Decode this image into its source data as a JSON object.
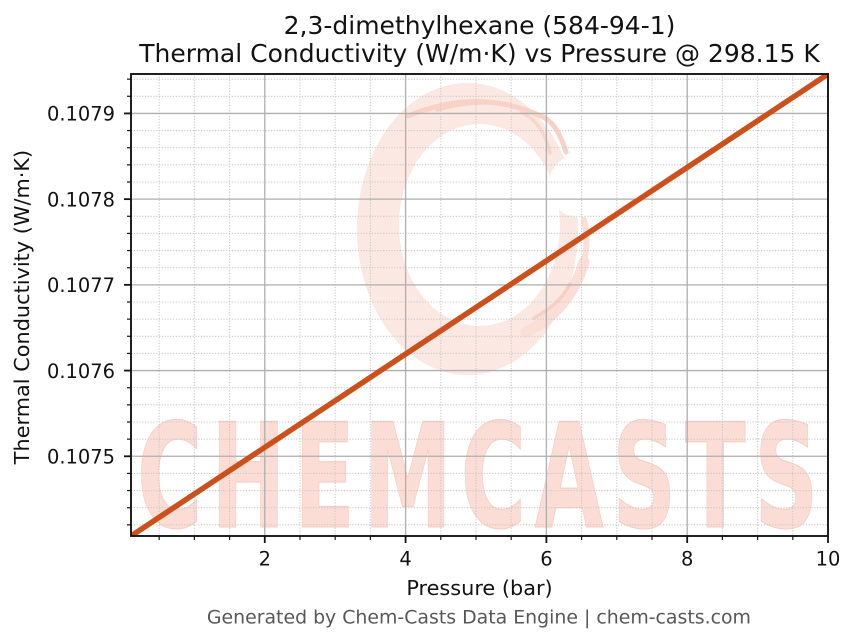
{
  "title": {
    "line1": "2,3-dimethylhexane (584-94-1)",
    "line2": "Thermal Conductivity (W/m·K) vs Pressure @ 298.15 K"
  },
  "axis": {
    "x_label": "Pressure (bar)",
    "y_label": "Thermal Conductivity (W/m·K)"
  },
  "footer": {
    "text": "Generated by Chem-Casts Data Engine | chem-casts.com"
  },
  "watermark": {
    "text": "CHEMCASTS",
    "logo": "brush-circle-logo"
  },
  "colors": {
    "background": "#ffffff",
    "line": "#cc501c",
    "grid_major": "#aeaeae",
    "grid_minor": "#c9c9c9",
    "axis": "#141414",
    "text": "#121212",
    "footer_text": "#575757",
    "watermark_fill": "#fbddd6",
    "watermark_ring": "#fce8e2",
    "watermark_accent": "#f8cfc4"
  },
  "chart_data": {
    "type": "line",
    "title": "2,3-dimethylhexane (584-94-1)\nThermal Conductivity (W/m·K) vs Pressure @ 298.15 K",
    "xlabel": "Pressure (bar)",
    "ylabel": "Thermal Conductivity (W/m·K)",
    "xlim": [
      0.1,
      10
    ],
    "ylim": [
      0.107407,
      0.107946
    ],
    "grid": true,
    "legend": false,
    "x_ticks": {
      "values": [
        2,
        4,
        6,
        8,
        10
      ],
      "labels": [
        "2",
        "4",
        "6",
        "8",
        "10"
      ],
      "minor_step": 0.5
    },
    "y_ticks": {
      "values": [
        0.1075,
        0.1076,
        0.1077,
        0.1078,
        0.1079
      ],
      "labels": [
        "0.1075",
        "0.1076",
        "0.1077",
        "0.1078",
        "0.1079"
      ],
      "minor_step": 2e-05
    },
    "series": [
      {
        "name": "Thermal conductivity vs pressure at 298.15 K",
        "x": [
          0.1,
          1,
          2,
          3,
          4,
          5,
          6,
          7,
          8,
          9,
          10
        ],
        "y": [
          0.107407,
          0.107456,
          0.1075104,
          0.1075648,
          0.1076193,
          0.1076737,
          0.1077281,
          0.1077826,
          0.107837,
          0.1078914,
          0.1079459
        ]
      }
    ]
  }
}
